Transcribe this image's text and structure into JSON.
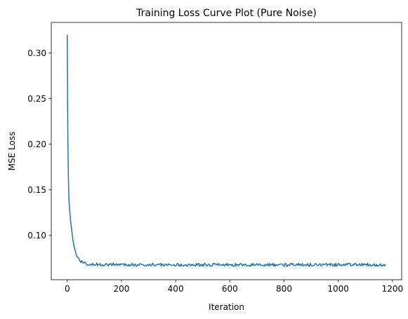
{
  "chart_data": {
    "type": "line",
    "title": "Training Loss Curve Plot (Pure Noise)",
    "xlabel": "Iteration",
    "ylabel": "MSE Loss",
    "xlim": [
      -59,
      1234
    ],
    "ylim": [
      0.0515,
      0.3335
    ],
    "x_ticks": [
      0,
      200,
      400,
      600,
      800,
      1000,
      1200
    ],
    "y_ticks": [
      0.1,
      0.15,
      0.2,
      0.25,
      0.3
    ],
    "x_tick_labels": [
      "0",
      "200",
      "400",
      "600",
      "800",
      "1000",
      "1200"
    ],
    "y_tick_labels": [
      "0.10",
      "0.15",
      "0.20",
      "0.25",
      "0.30"
    ],
    "grid": false,
    "legend": false,
    "series": [
      {
        "color": "#1f77b4",
        "x": [
          0,
          1,
          2,
          3,
          4,
          5,
          6,
          8,
          10,
          12,
          15,
          18,
          21,
          25,
          29,
          33,
          38,
          44,
          50,
          60,
          70,
          85,
          100,
          130,
          160,
          200,
          250,
          300,
          350,
          400,
          450,
          500,
          550,
          600,
          650,
          700,
          750,
          800,
          850,
          900,
          950,
          1000,
          1030,
          1050,
          1100,
          1150,
          1175
        ],
        "y": [
          0.32,
          0.255,
          0.215,
          0.19,
          0.168,
          0.152,
          0.14,
          0.131,
          0.124,
          0.117,
          0.11,
          0.102,
          0.095,
          0.088,
          0.084,
          0.079,
          0.076,
          0.073,
          0.071,
          0.0705,
          0.069,
          0.0688,
          0.0685,
          0.0683,
          0.0682,
          0.0681,
          0.068,
          0.0679,
          0.0679,
          0.068,
          0.0679,
          0.0678,
          0.0679,
          0.0678,
          0.0679,
          0.0678,
          0.0679,
          0.0678,
          0.0678,
          0.0679,
          0.0678,
          0.0679,
          0.068,
          0.0678,
          0.0679,
          0.0679,
          0.068
        ]
      }
    ]
  }
}
